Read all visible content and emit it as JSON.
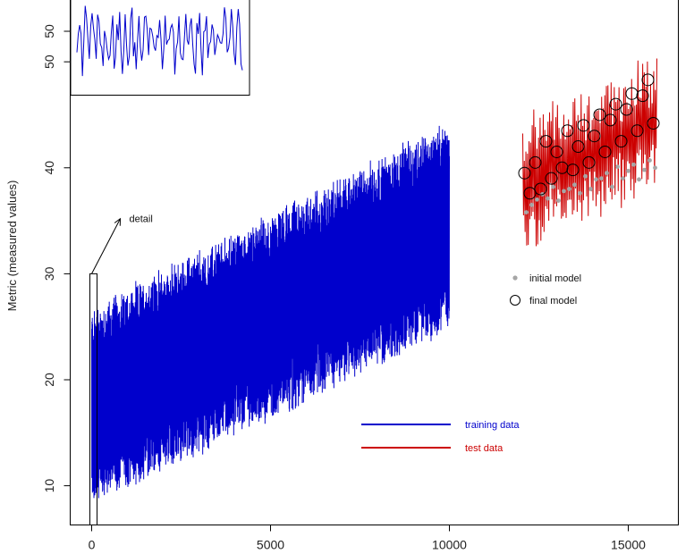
{
  "chart_data": {
    "type": "line",
    "title": "",
    "xlabel": "",
    "ylabel": "Metric (measured values)",
    "xlim": [
      -600,
      16400
    ],
    "ylim": [
      6.3,
      56.0
    ],
    "x_ticks": [
      0,
      5000,
      10000,
      15000
    ],
    "y_ticks": [
      10,
      20,
      30,
      40,
      50
    ],
    "grid": false,
    "legend_lines": [
      {
        "name": "training data",
        "color": "#0000cc"
      },
      {
        "name": "test data",
        "color": "#cc0000"
      }
    ],
    "legend_points": [
      {
        "name": "initial model",
        "color": "#a6a6a6",
        "marker": "filled-dot"
      },
      {
        "name": "final model",
        "color": "#000000",
        "marker": "open-circle"
      }
    ],
    "annotation": {
      "text": "detail",
      "arrow_from": [
        0,
        30
      ],
      "arrow_to": [
        800,
        35.2
      ]
    },
    "detail_box": {
      "x_range": [
        0,
        150
      ],
      "y_range": [
        6.3,
        30
      ]
    },
    "series": [
      {
        "name": "training data",
        "color": "#0000cc",
        "x_range": [
          0,
          10000
        ],
        "trend_start": 17.5,
        "trend_end": 34.5,
        "amplitude_min": 9,
        "amplitude_max": 9.5
      },
      {
        "name": "test data",
        "color": "#cc0000",
        "x_range": [
          12050,
          15800
        ],
        "trend_start": 38.5,
        "trend_end": 44.5,
        "y_min": 32.0,
        "y_max": 56.0
      }
    ],
    "initial_model_points": {
      "x": [
        12150,
        12300,
        12450,
        12600,
        12750,
        12900,
        13050,
        13200,
        13350,
        13500,
        13650,
        13800,
        13950,
        14100,
        14250,
        14400,
        14550,
        14700,
        14850,
        15000,
        15150,
        15300,
        15450,
        15600,
        15750
      ],
      "y": [
        35.8,
        36.5,
        37.0,
        37.5,
        37.1,
        38.2,
        36.9,
        37.8,
        38.0,
        38.4,
        37.6,
        39.2,
        38.0,
        38.9,
        39.0,
        39.5,
        38.2,
        40.1,
        39.0,
        39.7,
        40.3,
        38.9,
        39.8,
        40.7,
        40.0
      ]
    },
    "final_model_points": {
      "x": [
        12100,
        12250,
        12400,
        12550,
        12700,
        12850,
        13000,
        13150,
        13300,
        13450,
        13600,
        13750,
        13900,
        14050,
        14200,
        14350,
        14500,
        14650,
        14800,
        14950,
        15100,
        15250,
        15400,
        15550,
        15700
      ],
      "y": [
        39.5,
        37.6,
        40.5,
        38.0,
        42.5,
        39.0,
        41.5,
        40.0,
        43.5,
        39.8,
        42.0,
        44.0,
        40.5,
        43.0,
        45.0,
        41.5,
        44.5,
        46.0,
        42.5,
        45.5,
        47.0,
        43.5,
        46.8,
        48.3,
        44.2
      ]
    }
  },
  "inset": {
    "description_series": "training data detail",
    "color": "#0000cc",
    "y_tick": 50,
    "y_min": 44.2,
    "y_max": 56.0
  }
}
